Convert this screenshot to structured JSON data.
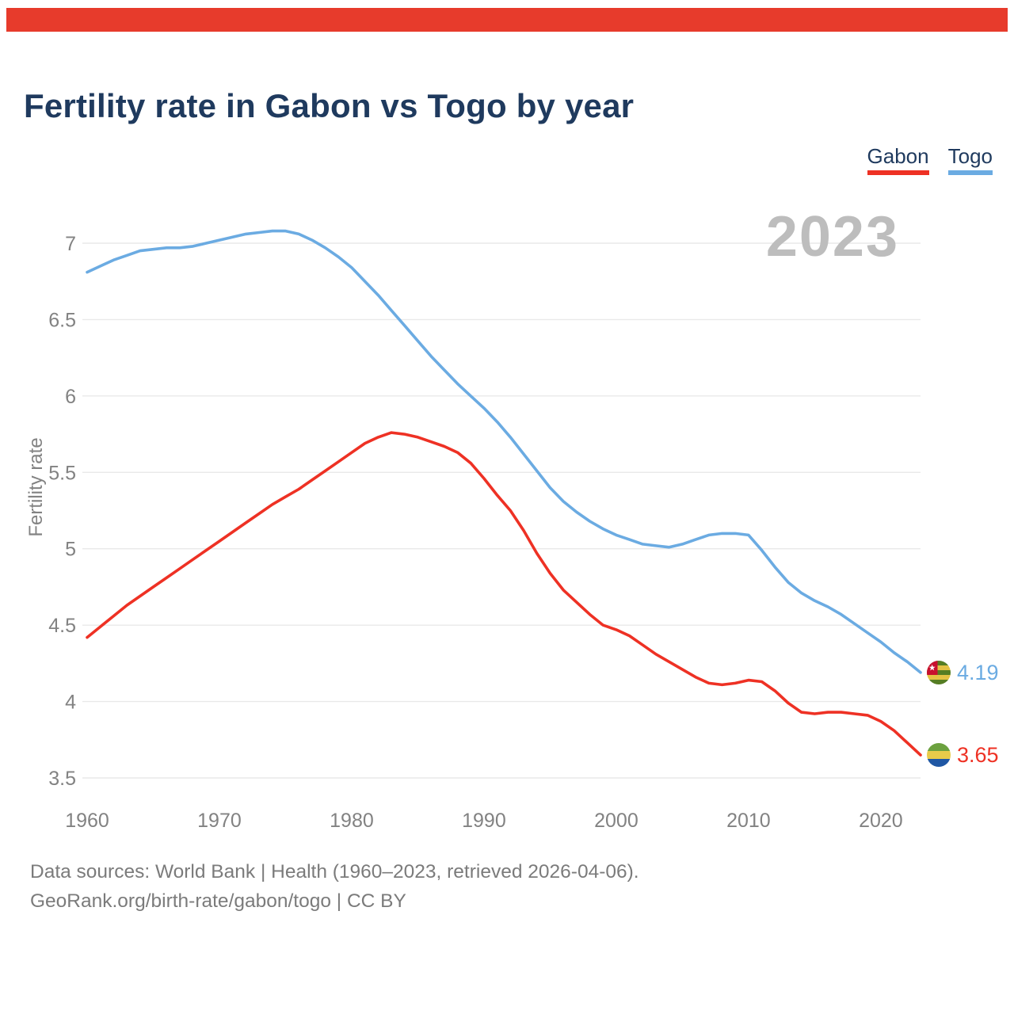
{
  "page": {
    "title": "Fertility rate in Gabon vs Togo by year",
    "watermark": "2023"
  },
  "colors": {
    "accent_bar": "#e73b2c",
    "title_text": "#1f3a5e",
    "axis_text": "#828282",
    "grid": "#e9e9e9",
    "watermark": "#bdbdbd",
    "gabon_red": "#ee3124",
    "togo_blue": "#6babe2"
  },
  "icons": {
    "togo_flag": "togo-flag-icon",
    "gabon_flag": "gabon-flag-icon"
  },
  "end_labels": {
    "togo": {
      "value": "4.19"
    },
    "gabon": {
      "value": "3.65"
    }
  },
  "footer": {
    "line1": "Data sources: World Bank | Health (1960–2023, retrieved 2026-04-06).",
    "line2": "GeoRank.org/birth-rate/gabon/togo | CC BY"
  },
  "chart_data": {
    "type": "line",
    "title": "Fertility rate in Gabon vs Togo by year",
    "xlabel": "",
    "ylabel": "Fertility rate",
    "grid": true,
    "legend_position": "top-right",
    "xlim": [
      1960,
      2023
    ],
    "ylim": [
      3.5,
      7.1
    ],
    "x_ticks": [
      1960,
      1970,
      1980,
      1990,
      2000,
      2010,
      2020
    ],
    "y_ticks": [
      7,
      6.5,
      6,
      5.5,
      5,
      4.5,
      4,
      3.5
    ],
    "x": [
      1960,
      1961,
      1962,
      1963,
      1964,
      1965,
      1966,
      1967,
      1968,
      1969,
      1970,
      1971,
      1972,
      1973,
      1974,
      1975,
      1976,
      1977,
      1978,
      1979,
      1980,
      1981,
      1982,
      1983,
      1984,
      1985,
      1986,
      1987,
      1988,
      1989,
      1990,
      1991,
      1992,
      1993,
      1994,
      1995,
      1996,
      1997,
      1998,
      1999,
      2000,
      2001,
      2002,
      2003,
      2004,
      2005,
      2006,
      2007,
      2008,
      2009,
      2010,
      2011,
      2012,
      2013,
      2014,
      2015,
      2016,
      2017,
      2018,
      2019,
      2020,
      2021,
      2022,
      2023
    ],
    "series": [
      {
        "name": "Gabon",
        "color": "#ee3124",
        "end_label": "3.65",
        "values": [
          4.42,
          4.49,
          4.56,
          4.63,
          4.69,
          4.75,
          4.81,
          4.87,
          4.93,
          4.99,
          5.05,
          5.11,
          5.17,
          5.23,
          5.29,
          5.34,
          5.39,
          5.45,
          5.51,
          5.57,
          5.63,
          5.69,
          5.73,
          5.76,
          5.75,
          5.73,
          5.7,
          5.67,
          5.63,
          5.56,
          5.46,
          5.35,
          5.25,
          5.12,
          4.97,
          4.84,
          4.73,
          4.65,
          4.57,
          4.5,
          4.47,
          4.43,
          4.37,
          4.31,
          4.26,
          4.21,
          4.16,
          4.12,
          4.11,
          4.12,
          4.14,
          4.13,
          4.07,
          3.99,
          3.93,
          3.92,
          3.93,
          3.93,
          3.92,
          3.91,
          3.87,
          3.81,
          3.73,
          3.65
        ]
      },
      {
        "name": "Togo",
        "color": "#6babe2",
        "end_label": "4.19",
        "values": [
          6.81,
          6.85,
          6.89,
          6.92,
          6.95,
          6.96,
          6.97,
          6.97,
          6.98,
          7.0,
          7.02,
          7.04,
          7.06,
          7.07,
          7.08,
          7.08,
          7.06,
          7.02,
          6.97,
          6.91,
          6.84,
          6.75,
          6.66,
          6.56,
          6.46,
          6.36,
          6.26,
          6.17,
          6.08,
          6.0,
          5.92,
          5.83,
          5.73,
          5.62,
          5.51,
          5.4,
          5.31,
          5.24,
          5.18,
          5.13,
          5.09,
          5.06,
          5.03,
          5.02,
          5.01,
          5.03,
          5.06,
          5.09,
          5.1,
          5.1,
          5.09,
          4.99,
          4.88,
          4.78,
          4.71,
          4.66,
          4.62,
          4.57,
          4.51,
          4.45,
          4.39,
          4.32,
          4.26,
          4.19
        ]
      }
    ]
  }
}
